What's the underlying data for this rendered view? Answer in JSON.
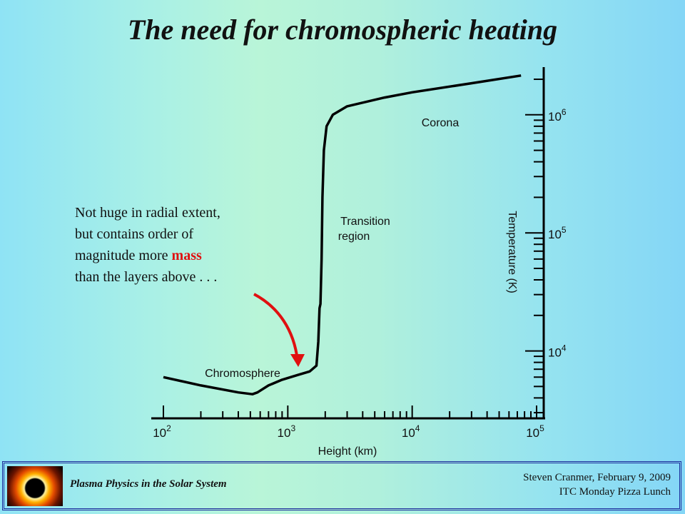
{
  "slide": {
    "title": "The need for chromospheric heating"
  },
  "annotation": {
    "line1": "Not huge in radial extent,",
    "line2": "but contains order of",
    "line3_prefix": "magnitude more ",
    "line3_highlight": "mass",
    "line4": "than the layers above . . .",
    "highlight_color": "#e01010"
  },
  "chart_data": {
    "type": "line",
    "xlabel": "Height (km)",
    "ylabel": "Temperature (K)",
    "x_scale": "log",
    "y_scale": "log",
    "xlim": [
      100,
      100000
    ],
    "ylim": [
      2800,
      2500000
    ],
    "x_ticks": [
      {
        "value": 100,
        "base": "10",
        "exp": "2"
      },
      {
        "value": 1000,
        "base": "10",
        "exp": "3"
      },
      {
        "value": 10000,
        "base": "10",
        "exp": "4"
      },
      {
        "value": 100000,
        "base": "10",
        "exp": "5"
      }
    ],
    "y_ticks": [
      {
        "value": 10000,
        "base": "10",
        "exp": "4"
      },
      {
        "value": 100000,
        "base": "10",
        "exp": "5"
      },
      {
        "value": 1000000,
        "base": "10",
        "exp": "6"
      }
    ],
    "series": [
      {
        "points": [
          [
            100,
            6000
          ],
          [
            200,
            5100
          ],
          [
            400,
            4450
          ],
          [
            520,
            4300
          ],
          [
            570,
            4450
          ],
          [
            700,
            5100
          ],
          [
            900,
            5700
          ],
          [
            1200,
            6250
          ],
          [
            1500,
            6700
          ],
          [
            1700,
            7500
          ],
          [
            1760,
            12000
          ],
          [
            1800,
            23000
          ],
          [
            1830,
            25000
          ],
          [
            1870,
            60000
          ],
          [
            1900,
            200000
          ],
          [
            1950,
            500000
          ],
          [
            2050,
            800000
          ],
          [
            2300,
            1000000
          ],
          [
            3000,
            1180000
          ],
          [
            6000,
            1400000
          ],
          [
            10000,
            1550000
          ],
          [
            30000,
            1850000
          ],
          [
            75000,
            2150000
          ]
        ]
      }
    ],
    "region_labels": [
      "Chromosphere",
      "Transition",
      "region",
      "Corona"
    ]
  },
  "footer": {
    "course": "Plasma Physics in the Solar System",
    "author_date": "Steven Cranmer,  February 9, 2009",
    "event": "ITC Monday Pizza Lunch",
    "border_color": "#1a2a9a"
  }
}
